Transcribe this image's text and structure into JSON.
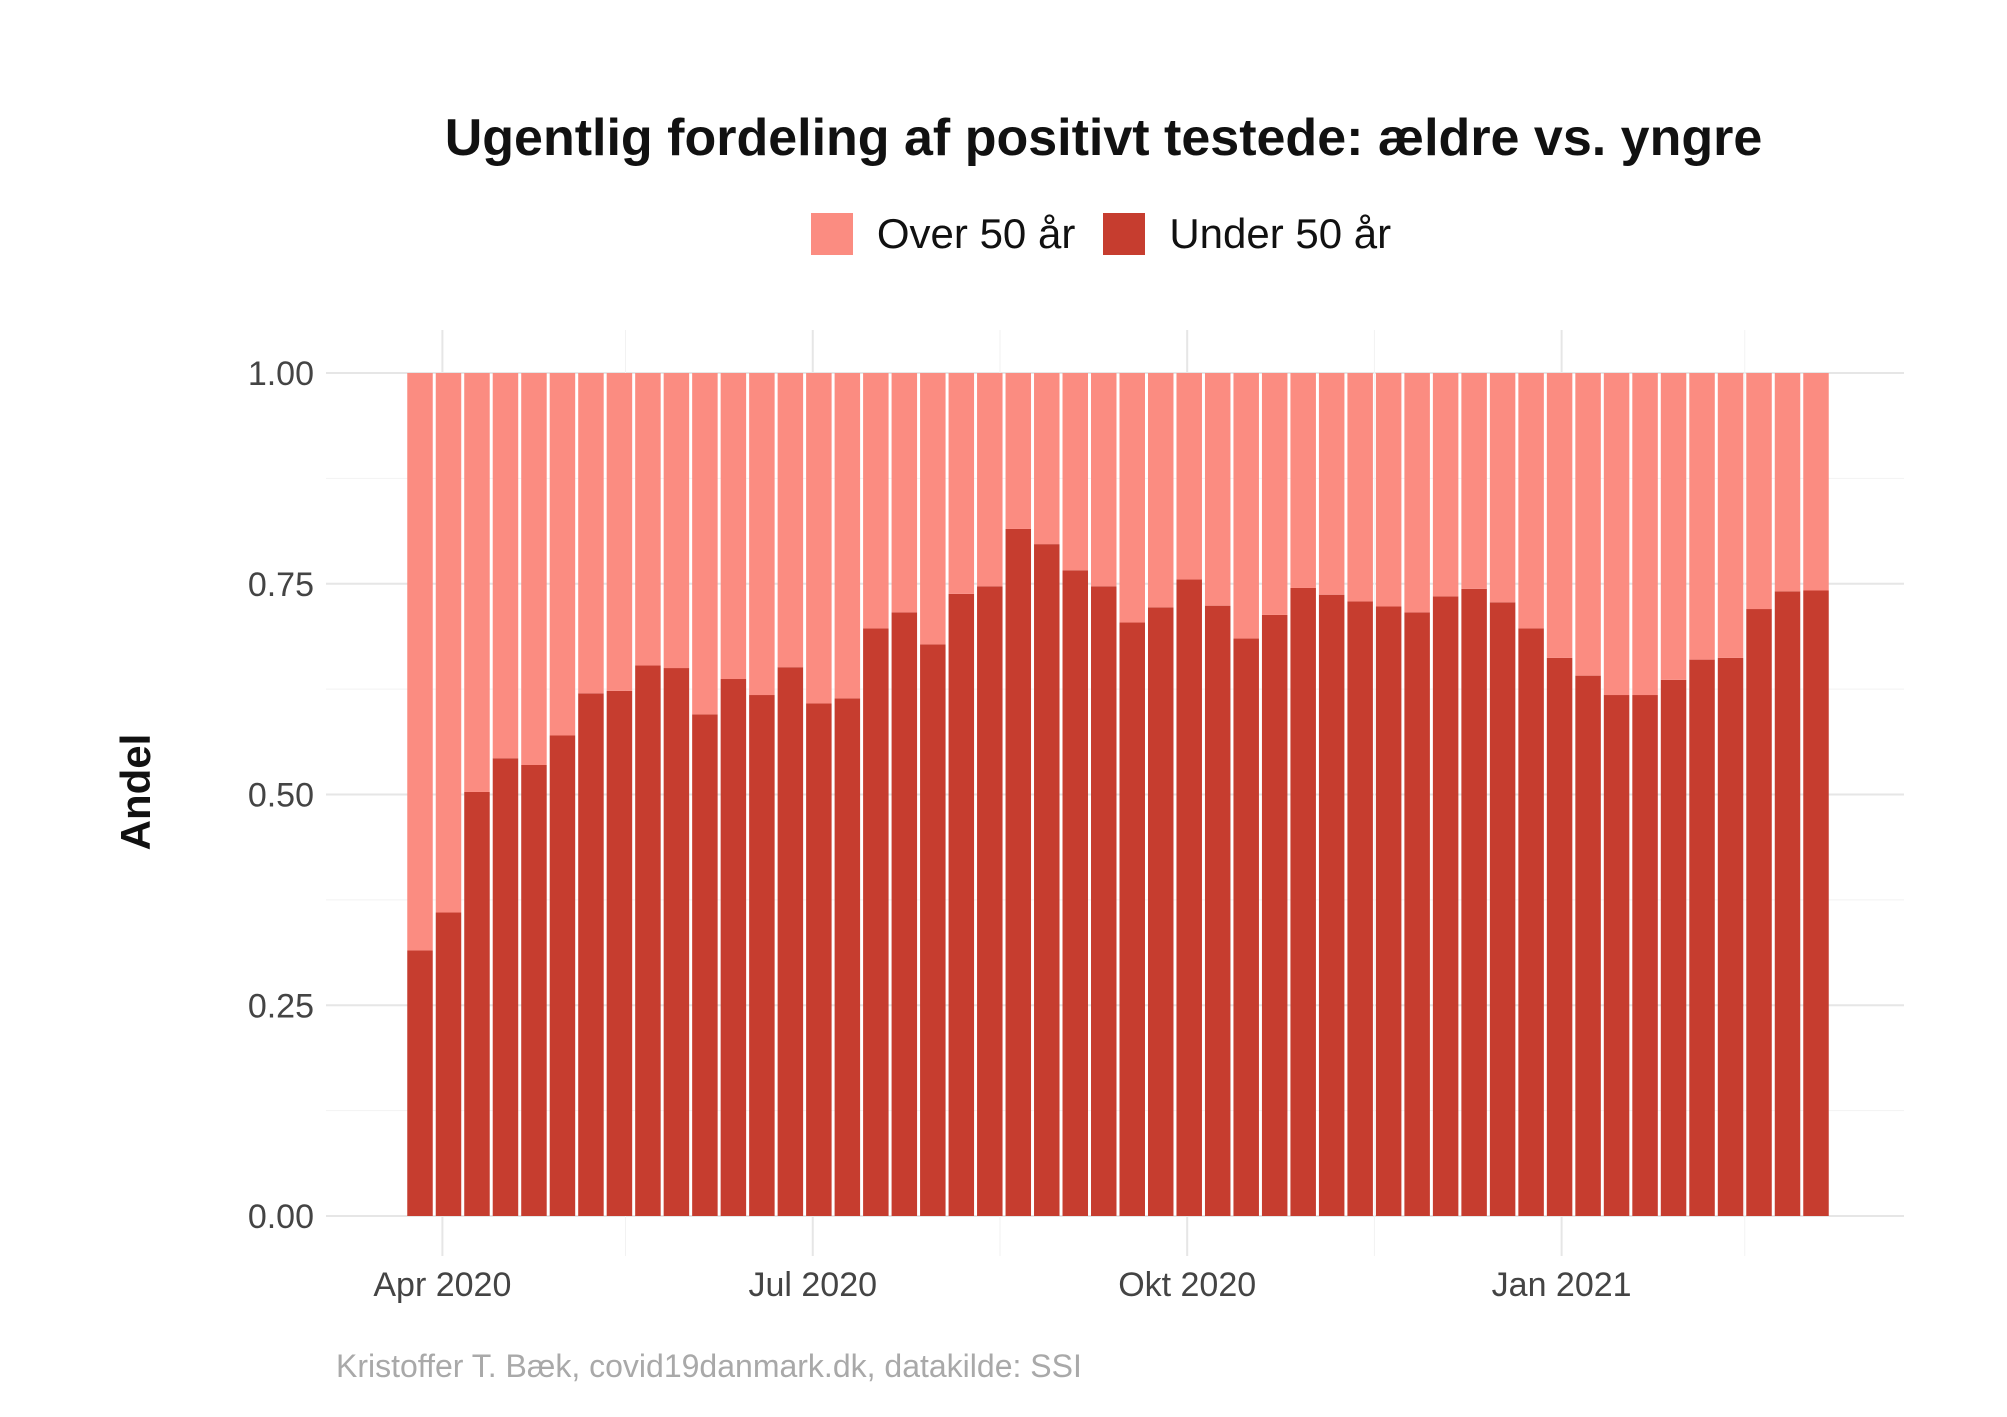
{
  "title": "Ugentlig fordeling af positivt testede: ældre vs. yngre",
  "legend": {
    "items": [
      {
        "label": "Over 50 år",
        "color": "#fb8c81"
      },
      {
        "label": "Under 50 år",
        "color": "#c63d2f"
      }
    ]
  },
  "y_axis_title": "Andel",
  "caption": "Kristoffer T. Bæk, covid19danmark.dk, datakilde: SSI",
  "chart_data": {
    "type": "bar",
    "stacked": true,
    "x_unit": "week",
    "x": [
      "2020-03-23",
      "2020-03-30",
      "2020-04-06",
      "2020-04-13",
      "2020-04-20",
      "2020-04-27",
      "2020-05-04",
      "2020-05-11",
      "2020-05-18",
      "2020-05-25",
      "2020-06-01",
      "2020-06-08",
      "2020-06-15",
      "2020-06-22",
      "2020-06-29",
      "2020-07-06",
      "2020-07-13",
      "2020-07-20",
      "2020-07-27",
      "2020-08-03",
      "2020-08-10",
      "2020-08-17",
      "2020-08-24",
      "2020-08-31",
      "2020-09-07",
      "2020-09-14",
      "2020-09-21",
      "2020-09-28",
      "2020-10-05",
      "2020-10-12",
      "2020-10-19",
      "2020-10-26",
      "2020-11-02",
      "2020-11-09",
      "2020-11-16",
      "2020-11-23",
      "2020-11-30",
      "2020-12-07",
      "2020-12-14",
      "2020-12-21",
      "2020-12-28",
      "2021-01-04",
      "2021-01-11",
      "2021-01-18",
      "2021-01-25",
      "2021-02-01",
      "2021-02-08",
      "2021-02-15",
      "2021-02-22",
      "2021-03-01"
    ],
    "series": [
      {
        "name": "Under 50 år",
        "color": "#c63d2f",
        "values": [
          0.315,
          0.36,
          0.503,
          0.543,
          0.535,
          0.57,
          0.62,
          0.623,
          0.653,
          0.65,
          0.595,
          0.637,
          0.618,
          0.651,
          0.608,
          0.614,
          0.697,
          0.716,
          0.678,
          0.738,
          0.747,
          0.815,
          0.797,
          0.766,
          0.747,
          0.704,
          0.722,
          0.755,
          0.724,
          0.685,
          0.713,
          0.745,
          0.737,
          0.729,
          0.723,
          0.716,
          0.735,
          0.744,
          0.728,
          0.697,
          0.662,
          0.641,
          0.618,
          0.618,
          0.636,
          0.66,
          0.662,
          0.72,
          0.741,
          0.742
        ]
      },
      {
        "name": "Over 50 år",
        "color": "#fb8c81",
        "values": [
          0.685,
          0.64,
          0.497,
          0.457,
          0.465,
          0.43,
          0.38,
          0.377,
          0.347,
          0.35,
          0.405,
          0.363,
          0.382,
          0.349,
          0.392,
          0.386,
          0.303,
          0.284,
          0.322,
          0.262,
          0.253,
          0.185,
          0.203,
          0.234,
          0.253,
          0.296,
          0.278,
          0.245,
          0.276,
          0.315,
          0.287,
          0.255,
          0.263,
          0.271,
          0.277,
          0.284,
          0.265,
          0.256,
          0.272,
          0.303,
          0.338,
          0.359,
          0.382,
          0.382,
          0.364,
          0.34,
          0.338,
          0.28,
          0.259,
          0.258
        ]
      }
    ],
    "x_ticks": [
      {
        "date": "2020-04-01",
        "label": "Apr 2020"
      },
      {
        "date": "2020-07-01",
        "label": "Jul 2020"
      },
      {
        "date": "2020-10-01",
        "label": "Okt 2020"
      },
      {
        "date": "2021-01-01",
        "label": "Jan 2021"
      }
    ],
    "x_minor_ticks": [
      "2020-05-16",
      "2020-08-16",
      "2020-11-16",
      "2021-02-15"
    ],
    "y_ticks": [
      "0.00",
      "0.25",
      "0.50",
      "0.75",
      "1.00"
    ],
    "ylim": [
      0,
      1
    ],
    "ylabel": "Andel",
    "grid": true,
    "legend_position": "top"
  }
}
